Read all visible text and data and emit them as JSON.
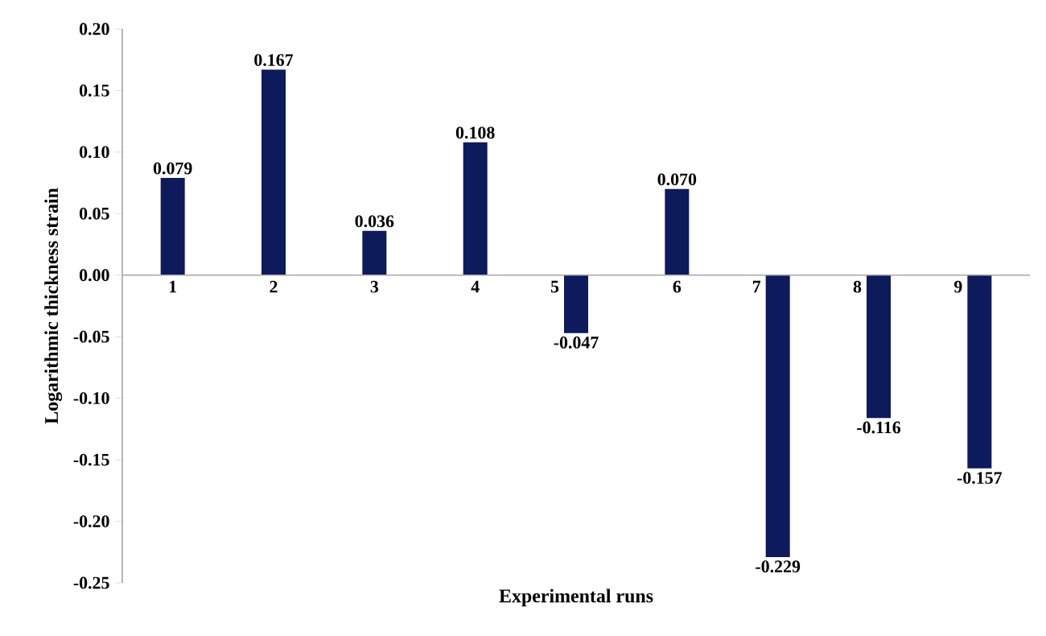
{
  "chart_data": {
    "type": "bar",
    "xlabel": "Experimental runs",
    "ylabel": "Logarithmic thickness strain",
    "categories": [
      "1",
      "2",
      "3",
      "4",
      "5",
      "6",
      "7",
      "8",
      "9"
    ],
    "values": [
      0.079,
      0.167,
      0.036,
      0.108,
      -0.047,
      0.07,
      -0.229,
      -0.116,
      -0.157
    ],
    "value_labels": [
      "0.079",
      "0.167",
      "0.036",
      "0.108",
      "-0.047",
      "0.070",
      "-0.229",
      "-0.116",
      "-0.157"
    ],
    "color": "#0d1a5c",
    "ylim": [
      -0.25,
      0.2
    ],
    "yticks": [
      {
        "value": -0.25,
        "label": "-0.25"
      },
      {
        "value": -0.2,
        "label": "-0.20"
      },
      {
        "value": -0.15,
        "label": "-0.15"
      },
      {
        "value": -0.1,
        "label": "-0.10"
      },
      {
        "value": -0.05,
        "label": "-0.05"
      },
      {
        "value": 0,
        "label": "0.00"
      },
      {
        "value": 0.05,
        "label": "0.05"
      },
      {
        "value": 0.1,
        "label": "0.10"
      },
      {
        "value": 0.15,
        "label": "0.15"
      },
      {
        "value": 0.2,
        "label": "0.20"
      }
    ],
    "grid": false
  }
}
